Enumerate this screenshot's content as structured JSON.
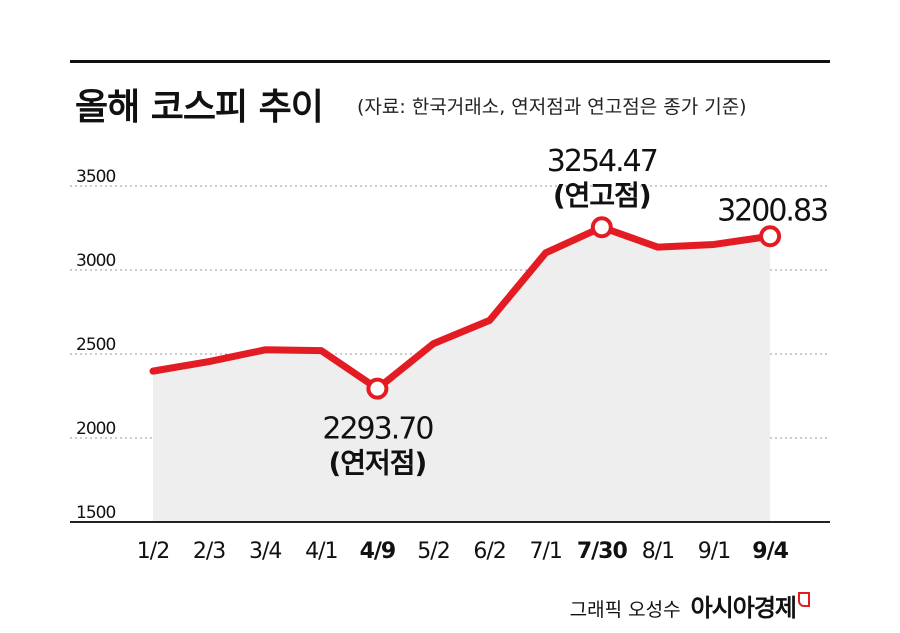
{
  "title": "올해 코스피 추이",
  "subtitle": "(자료: 한국거래소, 연저점과 연고점은 종가 기준)",
  "credit": "그래픽 오성수",
  "brand": "아시아경제",
  "colors": {
    "line": "#e31b23",
    "area": "#eeeeee",
    "grid": "#999999",
    "axis": "#222222",
    "text": "#111111"
  },
  "chart_data": {
    "type": "area",
    "categories": [
      "1/2",
      "2/3",
      "3/4",
      "4/1",
      "4/9",
      "5/2",
      "6/2",
      "7/1",
      "7/30",
      "8/1",
      "9/1",
      "9/4"
    ],
    "bold_categories": [
      "4/9",
      "7/30",
      "9/4"
    ],
    "series": [
      {
        "values": [
          2398,
          2455,
          2525,
          2520,
          2293.7,
          2562,
          2700,
          3102,
          3254.47,
          3136,
          3152,
          3200.83
        ]
      }
    ],
    "y_ticks": [
      1500,
      2000,
      2500,
      3000,
      3500
    ],
    "ylim": [
      1500,
      3500
    ],
    "grid": true,
    "annotations": [
      {
        "index": 4,
        "value": "2293.70",
        "label": "(연저점)",
        "position": "below"
      },
      {
        "index": 8,
        "value": "3254.47",
        "label": "(연고점)",
        "position": "above"
      },
      {
        "index": 11,
        "value": "3200.83",
        "label": "",
        "position": "above"
      }
    ]
  }
}
